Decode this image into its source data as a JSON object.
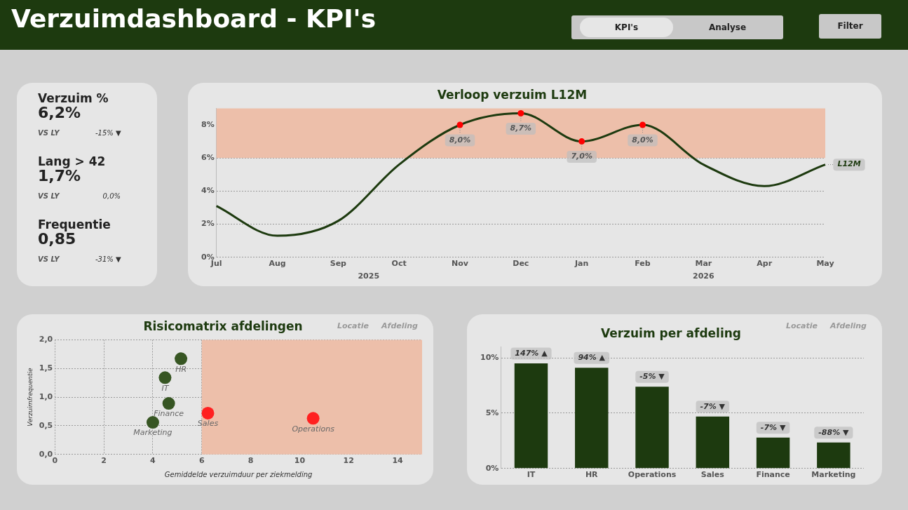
{
  "chart_data": [
    {
      "type": "other",
      "title": "Verzuimdashboard - KPI's",
      "annotations": [
        "KPI's",
        "Analyse",
        "Filter"
      ]
    },
    {
      "type": "other",
      "annotations": [
        "Verzuim %",
        "6,2%",
        "VS LY",
        "-15% ▼",
        "Lang > 42",
        "1,7%",
        "VS LY",
        "0,0%",
        "Frequentie",
        "0,85",
        "VS LY",
        "-31% ▼"
      ]
    },
    {
      "type": "line",
      "title": "Verloop verzuim L12M",
      "categories": [
        "Jul",
        "Aug",
        "Sep",
        "Oct",
        "Nov",
        "Dec",
        "Jan",
        "Feb",
        "Mar",
        "Apr",
        "May"
      ],
      "series": [
        {
          "name": "L12M",
          "color": "#1d3a0f",
          "values": [
            3.1,
            1.3,
            2.2,
            5.6,
            8.0,
            8.7,
            7.0,
            8.0,
            5.6,
            4.3,
            5.6
          ],
          "value_labels": [
            null,
            null,
            null,
            null,
            "8,0%",
            "8,7%",
            "7,0%",
            "8,0%",
            null,
            null,
            null
          ],
          "colors": [
            null,
            null,
            null,
            null,
            "#ff0000",
            "#ff0000",
            "#ff0000",
            "#ff0000",
            null,
            null,
            null
          ]
        }
      ],
      "ylim": [
        0,
        9
      ],
      "yticks": [
        {
          "value": 0,
          "label": "0%"
        },
        {
          "value": 2,
          "label": "2%"
        },
        {
          "value": 4,
          "label": "4%"
        },
        {
          "value": 6,
          "label": "6%"
        },
        {
          "value": 8,
          "label": "8%"
        }
      ],
      "bands": [
        {
          "axis": "y",
          "from": 6,
          "to": 9,
          "color": "#edbfaa"
        }
      ],
      "annotations": [
        "2025",
        "2026"
      ],
      "grid": "y",
      "line_style": "solid"
    },
    {
      "type": "scatter",
      "title": "Risicomatrix afdelingen",
      "xlabel": "Gemiddelde verzuimduur per ziekmelding",
      "ylabel": "Verzuimfrequentie",
      "series": [
        {
          "name": "HR",
          "color": "#375623",
          "x": [
            5.15
          ],
          "values": [
            1.67
          ]
        },
        {
          "name": "IT",
          "color": "#375623",
          "x": [
            4.5
          ],
          "values": [
            1.34
          ]
        },
        {
          "name": "Finance",
          "color": "#375623",
          "x": [
            4.65
          ],
          "values": [
            0.89
          ]
        },
        {
          "name": "Marketing",
          "color": "#375623",
          "x": [
            4.0
          ],
          "values": [
            0.56
          ]
        },
        {
          "name": "Sales",
          "color": "#ff2020",
          "x": [
            6.25
          ],
          "values": [
            0.72
          ]
        },
        {
          "name": "Operations",
          "color": "#ff2020",
          "x": [
            10.55
          ],
          "values": [
            0.63
          ]
        }
      ],
      "xlim": [
        0,
        15
      ],
      "xticks": [
        0,
        2,
        4,
        6,
        8,
        10,
        12,
        14
      ],
      "ylim": [
        0,
        2
      ],
      "yticks": [
        {
          "value": 0,
          "label": "0,0"
        },
        {
          "value": 0.5,
          "label": "0,5"
        },
        {
          "value": 1,
          "label": "1,0"
        },
        {
          "value": 1.5,
          "label": "1,5"
        },
        {
          "value": 2,
          "label": "2,0"
        }
      ],
      "bands": [
        {
          "axis": "x",
          "from": 6,
          "to": 15,
          "color": "#edbfaa"
        }
      ],
      "annotations": [
        "Locatie",
        "Afdeling"
      ],
      "grid": true,
      "marker": "circle"
    },
    {
      "type": "bar",
      "title": "Verzuim per afdeling",
      "categories": [
        "IT",
        "HR",
        "Operations",
        "Sales",
        "Finance",
        "Marketing"
      ],
      "values": [
        9.5,
        9.1,
        7.4,
        4.7,
        2.8,
        2.35
      ],
      "color": "#1d3a0f",
      "ylim": [
        0,
        11
      ],
      "yticks": [
        {
          "value": 0,
          "label": "0%"
        },
        {
          "value": 5,
          "label": "5%"
        },
        {
          "value": 10,
          "label": "10%"
        }
      ],
      "annotations": [
        "Locatie",
        "Afdeling",
        {
          "text": "147% ▲",
          "x": "IT",
          "y": 9.5
        },
        {
          "text": "94% ▲",
          "x": "HR",
          "y": 9.1
        },
        {
          "text": "-5% ▼",
          "x": "Operations",
          "y": 7.4
        },
        {
          "text": "-7% ▼",
          "x": "Sales",
          "y": 4.7
        },
        {
          "text": "-7% ▼",
          "x": "Finance",
          "y": 2.8
        },
        {
          "text": "-88% ▼",
          "x": "Marketing",
          "y": 2.35
        }
      ],
      "grid": "y"
    }
  ]
}
